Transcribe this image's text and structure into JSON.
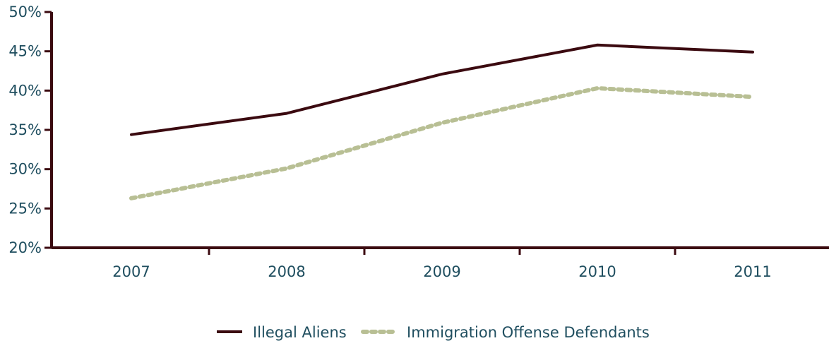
{
  "chart_data": {
    "type": "line",
    "categories": [
      "2007",
      "2008",
      "2009",
      "2010",
      "2011"
    ],
    "ylim": [
      20,
      50
    ],
    "y_ticks": [
      20,
      25,
      30,
      35,
      40,
      45,
      50
    ],
    "y_tick_labels": [
      "20%",
      "25%",
      "30%",
      "35%",
      "40%",
      "45%",
      "50%"
    ],
    "grid": false,
    "legend_position": "bottom-center",
    "series": [
      {
        "name": "Illegal Aliens",
        "values": [
          34.4,
          37.1,
          42.1,
          45.8,
          44.9
        ],
        "color": "#3b0a10",
        "style": "solid"
      },
      {
        "name": "Immigration Offense Defendants",
        "values": [
          26.3,
          30.1,
          35.9,
          40.3,
          39.2
        ],
        "color": "#b8bf94",
        "style": "dotted"
      }
    ]
  }
}
